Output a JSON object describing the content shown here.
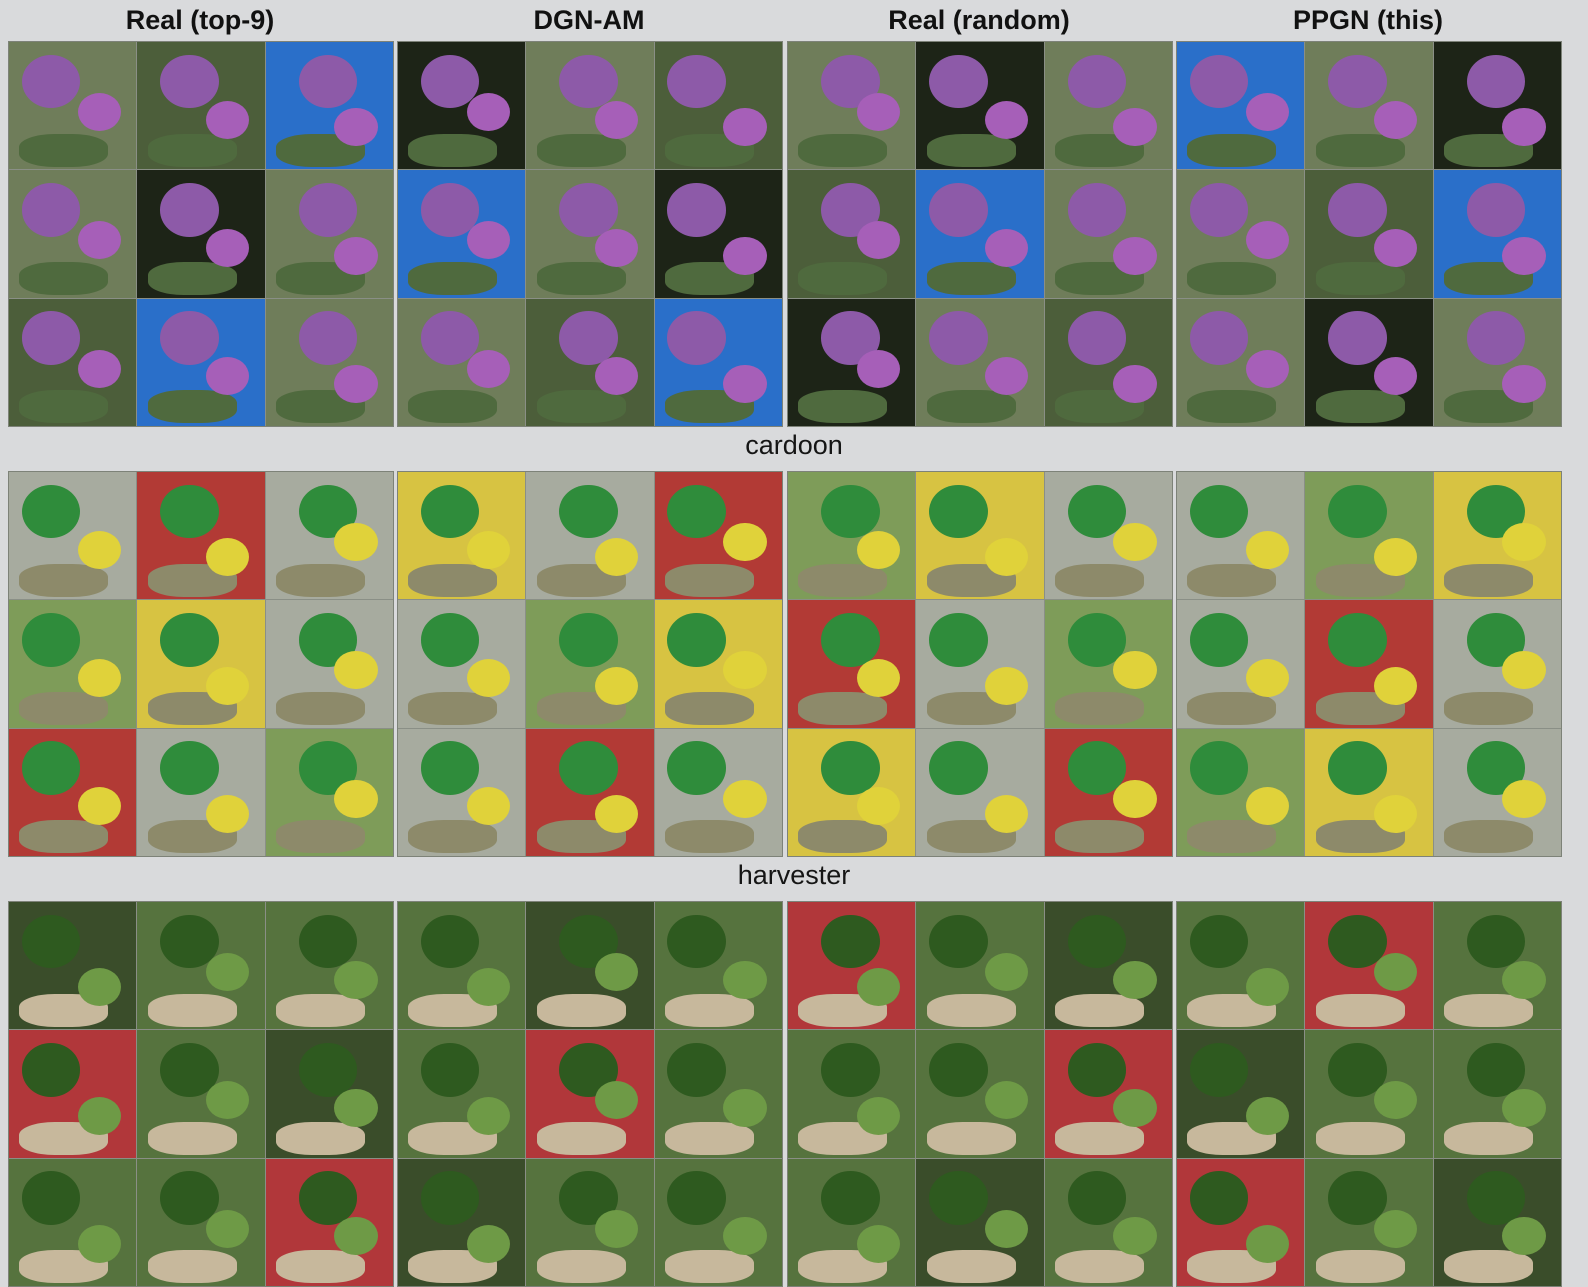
{
  "columns": [
    "Real (top-9)",
    "DGN-AM",
    "Real (random)",
    "PPGN (this)"
  ],
  "rows": [
    {
      "label": "cardoon",
      "colors": {
        "bg": "#6f7d5a",
        "s1": "#8d5aa8",
        "s2": "#a65fb8",
        "s3": "#4f6a3e",
        "bg_alt": "#4c5e3a",
        "bg_dark": "#1d2417",
        "bg_blue": "#2a6fc9"
      }
    },
    {
      "label": "harvester",
      "colors": {
        "bg": "#a7ab9f",
        "s1": "#2f8c3b",
        "s2": "#e0d23a",
        "s3": "#8d8a6a",
        "bg_alt": "#7e9c59",
        "bg_red": "#b23a35",
        "bg_yellow": "#d7c342"
      }
    },
    {
      "label": "",
      "colors": {
        "bg": "#56733e",
        "s1": "#2e5a1f",
        "s2": "#6e9a46",
        "s3": "#c7b89c",
        "bg_alt": "#3a4d2a",
        "bg_warm": "#b97a43",
        "bg_red": "#b1373a"
      }
    }
  ],
  "icons": {
    "tile": "photo-thumbnail-icon"
  }
}
